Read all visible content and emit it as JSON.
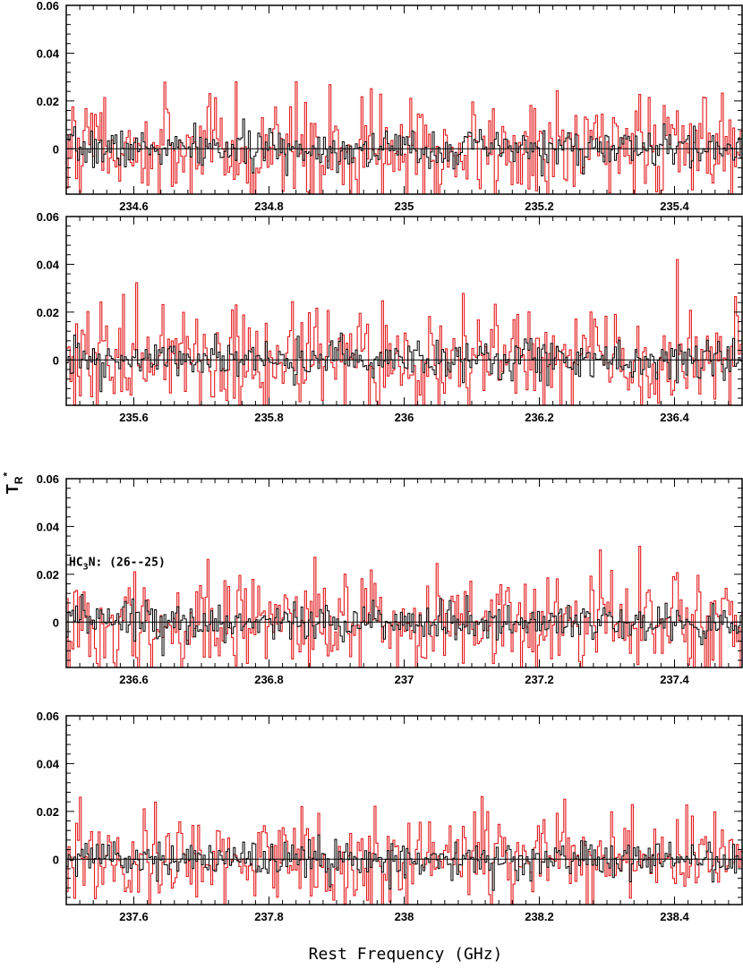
{
  "chart_data": {
    "type": "line",
    "xlabel": "Rest Frequency (GHz)",
    "ylabel": {
      "main": "T",
      "sub": "R",
      "sup": "*"
    },
    "series_colors": {
      "obs": "#000000",
      "model": "#e41a1c"
    },
    "panels": [
      {
        "xlim": [
          234.5,
          235.5
        ],
        "ylim": [
          -0.019,
          0.06
        ],
        "xticks": [
          234.6,
          234.8,
          235,
          235.2,
          235.4
        ],
        "xtick_labels": [
          "234.6",
          "234.8",
          "235",
          "235.2",
          "235.4"
        ],
        "yticks": [
          0,
          0.02,
          0.04,
          0.06
        ],
        "ytick_labels": [
          "0",
          "0.02",
          "0.04",
          "0.06"
        ],
        "obs_noise": 0.004,
        "model_noise": 0.011,
        "annotation": ""
      },
      {
        "xlim": [
          235.5,
          236.5
        ],
        "ylim": [
          -0.019,
          0.06
        ],
        "xticks": [
          235.6,
          235.8,
          236,
          236.2,
          236.4
        ],
        "xtick_labels": [
          "235.6",
          "235.8",
          "236",
          "236.2",
          "236.4"
        ],
        "yticks": [
          0,
          0.02,
          0.04,
          0.06
        ],
        "ytick_labels": [
          "0",
          "0.02",
          "0.04",
          "0.06"
        ],
        "obs_noise": 0.004,
        "model_noise": 0.011,
        "annotation": ""
      },
      {
        "xlim": [
          236.5,
          237.5
        ],
        "ylim": [
          -0.019,
          0.06
        ],
        "xticks": [
          236.6,
          236.8,
          237,
          237.2,
          237.4
        ],
        "xtick_labels": [
          "236.6",
          "236.8",
          "237",
          "237.2",
          "237.4"
        ],
        "yticks": [
          0,
          0.02,
          0.04,
          0.06
        ],
        "ytick_labels": [
          "0",
          "0.02",
          "0.04",
          "0.06"
        ],
        "obs_noise": 0.004,
        "model_noise": 0.011,
        "annotation": "HC3N: (26--25)",
        "annotation_parts": {
          "a": "HC",
          "sub": "3",
          "b": "N: (26--25)"
        }
      },
      {
        "xlim": [
          237.5,
          238.5
        ],
        "ylim": [
          -0.019,
          0.06
        ],
        "xticks": [
          237.6,
          237.8,
          238,
          238.2,
          238.4
        ],
        "xtick_labels": [
          "237.6",
          "237.8",
          "238",
          "238.2",
          "238.4"
        ],
        "yticks": [
          0,
          0.02,
          0.04,
          0.06
        ],
        "ytick_labels": [
          "0",
          "0.02",
          "0.04",
          "0.06"
        ],
        "obs_noise": 0.004,
        "model_noise": 0.009,
        "annotation": ""
      }
    ]
  }
}
